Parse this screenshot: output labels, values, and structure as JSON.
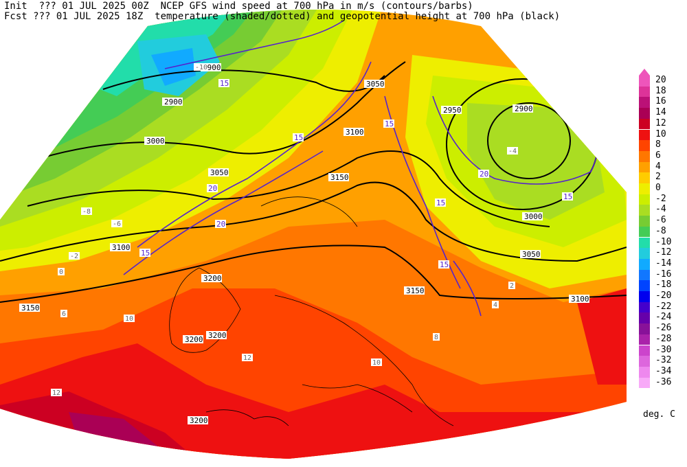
{
  "header": {
    "init_line": "Init  ??? 01 JUL 2025 00Z  NCEP GFS wind speed at 700 hPa in m/s (contours/barbs)",
    "fcst_line": "Fcst ??? 01 JUL 2025 18Z  temperature (shaded/dotted) and geopotential height at 700 hPa (black)"
  },
  "colorbar": {
    "units": "deg. C",
    "levels": [
      {
        "label": "20",
        "color": "#ee55bb"
      },
      {
        "label": "18",
        "color": "#dd3399"
      },
      {
        "label": "16",
        "color": "#bb1177"
      },
      {
        "label": "14",
        "color": "#aa0055"
      },
      {
        "label": "12",
        "color": "#cc0022"
      },
      {
        "label": "10",
        "color": "#ee1111"
      },
      {
        "label": "8",
        "color": "#ff4400"
      },
      {
        "label": "6",
        "color": "#ff7700"
      },
      {
        "label": "4",
        "color": "#ffa000"
      },
      {
        "label": "2",
        "color": "#ffcc00"
      },
      {
        "label": "0",
        "color": "#eeee00"
      },
      {
        "label": "-2",
        "color": "#ccee00"
      },
      {
        "label": "-4",
        "color": "#aadd22"
      },
      {
        "label": "-6",
        "color": "#77cc33"
      },
      {
        "label": "-8",
        "color": "#44cc55"
      },
      {
        "label": "-10",
        "color": "#22ddaa"
      },
      {
        "label": "-12",
        "color": "#22ccdd"
      },
      {
        "label": "-14",
        "color": "#11aaff"
      },
      {
        "label": "-16",
        "color": "#1177ff"
      },
      {
        "label": "-18",
        "color": "#0044ff"
      },
      {
        "label": "-20",
        "color": "#0000ee"
      },
      {
        "label": "-22",
        "color": "#4400cc"
      },
      {
        "label": "-24",
        "color": "#6600aa"
      },
      {
        "label": "-26",
        "color": "#881199"
      },
      {
        "label": "-28",
        "color": "#aa22aa"
      },
      {
        "label": "-30",
        "color": "#cc44cc"
      },
      {
        "label": "-32",
        "color": "#dd66dd"
      },
      {
        "label": "-34",
        "color": "#ee88ee"
      },
      {
        "label": "-36",
        "color": "#f8aaf8"
      }
    ]
  },
  "height_contour_labels": [
    "2900",
    "2950",
    "3000",
    "3050",
    "3100",
    "3150",
    "3200"
  ],
  "wind_contour_labels": [
    "15",
    "20"
  ],
  "temperature_labels": [
    "-10",
    "-8",
    "-6",
    "-4",
    "-2",
    "0",
    "2",
    "4",
    "6",
    "8",
    "10",
    "12"
  ]
}
